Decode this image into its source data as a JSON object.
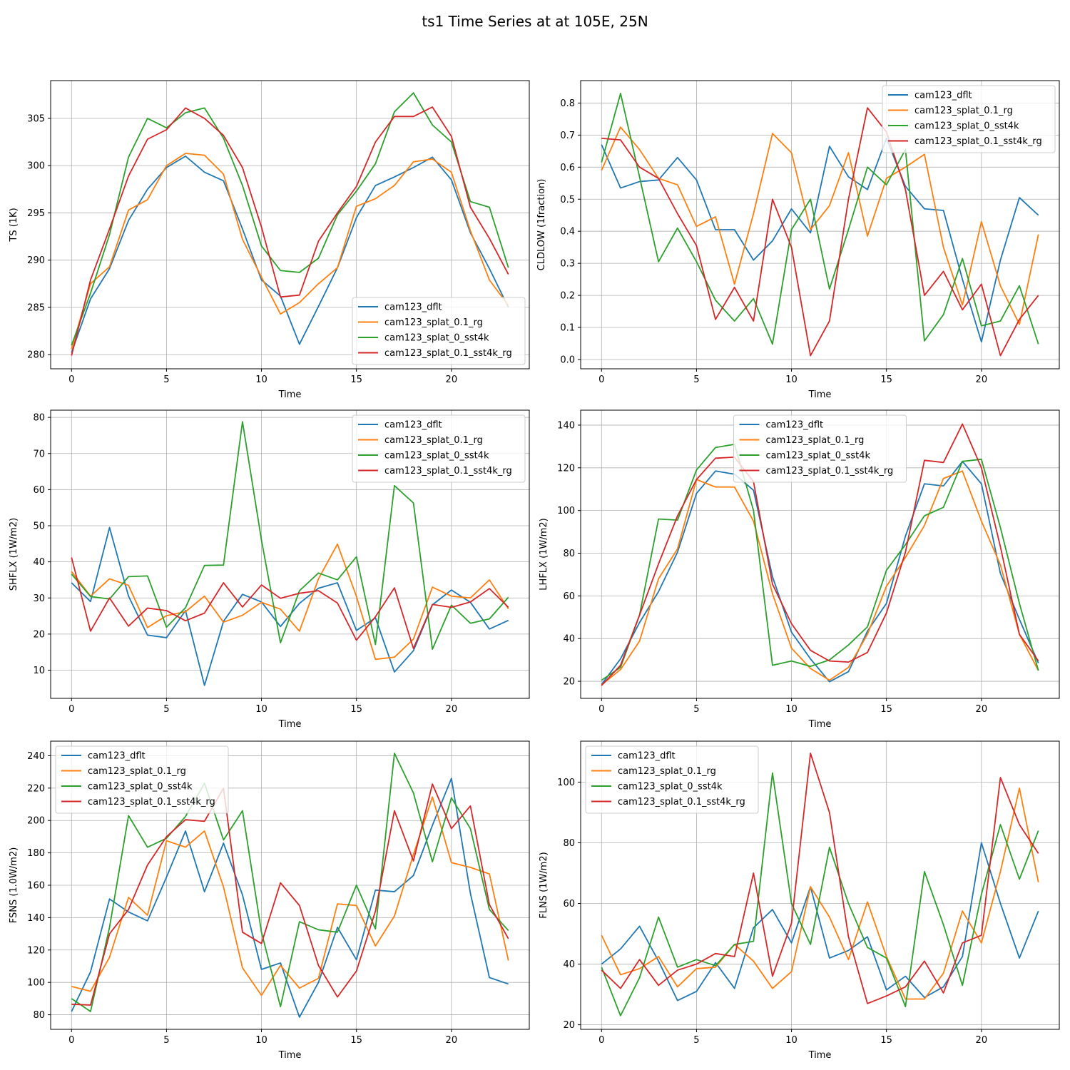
{
  "title": "ts1 Time Series at at 105E, 25N",
  "colors": {
    "cam123_dflt": "#1f77b4",
    "cam123_splat_0.1_rg": "#ff7f0e",
    "cam123_splat_0_sst4k": "#2ca02c",
    "cam123_splat_0.1_sst4k_rg": "#d62728"
  },
  "chart_data": [
    {
      "type": "line",
      "ylabel": "TS (1K)",
      "xlabel": "Time",
      "x": [
        0,
        1,
        2,
        3,
        4,
        5,
        6,
        7,
        8,
        9,
        10,
        11,
        12,
        13,
        14,
        15,
        16,
        17,
        18,
        19,
        20,
        21,
        22,
        23
      ],
      "xlim": [
        -1.1,
        24.1
      ],
      "xticks": [
        0,
        5,
        10,
        15,
        20
      ],
      "ylim": [
        278.5,
        309
      ],
      "yticks": [
        280,
        285,
        290,
        295,
        300,
        305
      ],
      "legend_loc": "lower right",
      "series": [
        {
          "name": "cam123_dflt",
          "values": [
            280.2,
            285.9,
            289.1,
            294.2,
            297.5,
            299.8,
            301.0,
            299.3,
            298.4,
            293.3,
            287.9,
            286.2,
            281.1,
            285.1,
            289.2,
            294.5,
            297.9,
            298.8,
            299.8,
            300.9,
            298.5,
            292.9,
            289.1,
            285.0
          ]
        },
        {
          "name": "cam123_splat_0.1_rg",
          "values": [
            280.6,
            287.5,
            289.3,
            295.3,
            296.4,
            300.0,
            301.3,
            301.1,
            299.1,
            292.2,
            288.2,
            284.3,
            285.5,
            287.5,
            289.2,
            295.7,
            296.5,
            297.9,
            300.4,
            300.7,
            299.3,
            293.1,
            287.9,
            285.2
          ]
        },
        {
          "name": "cam123_splat_0_sst4k",
          "values": [
            281.0,
            286.5,
            292.7,
            300.9,
            305.0,
            304.0,
            305.6,
            306.1,
            302.9,
            297.9,
            291.5,
            288.9,
            288.7,
            290.2,
            294.8,
            297.3,
            300.2,
            305.7,
            307.7,
            304.3,
            302.5,
            296.2,
            295.6,
            289.2
          ]
        },
        {
          "name": "cam123_splat_0.1_sst4k_rg",
          "values": [
            279.9,
            287.9,
            293.3,
            298.9,
            302.8,
            303.8,
            306.1,
            305.0,
            303.2,
            299.8,
            293.5,
            286.1,
            286.3,
            292.0,
            295.0,
            297.8,
            302.5,
            305.2,
            305.2,
            306.2,
            303.1,
            295.6,
            292.3,
            288.5
          ]
        }
      ]
    },
    {
      "type": "line",
      "ylabel": "CLDLOW (1fraction)",
      "xlabel": "Time",
      "x": [
        0,
        1,
        2,
        3,
        4,
        5,
        6,
        7,
        8,
        9,
        10,
        11,
        12,
        13,
        14,
        15,
        16,
        17,
        18,
        19,
        20,
        21,
        22,
        23
      ],
      "xlim": [
        -1.1,
        24.1
      ],
      "xticks": [
        0,
        5,
        10,
        15,
        20
      ],
      "ylim": [
        -0.029,
        0.87
      ],
      "yticks": [
        0.0,
        0.1,
        0.2,
        0.3,
        0.4,
        0.5,
        0.6,
        0.7,
        0.8
      ],
      "legend_loc": "upper right",
      "series": [
        {
          "name": "cam123_dflt",
          "values": [
            0.67,
            0.535,
            0.555,
            0.56,
            0.63,
            0.56,
            0.405,
            0.405,
            0.31,
            0.37,
            0.47,
            0.395,
            0.665,
            0.57,
            0.53,
            0.69,
            0.54,
            0.47,
            0.465,
            0.25,
            0.055,
            0.31,
            0.505,
            0.45
          ]
        },
        {
          "name": "cam123_splat_0.1_rg",
          "values": [
            0.59,
            0.725,
            0.655,
            0.565,
            0.545,
            0.415,
            0.445,
            0.235,
            0.455,
            0.705,
            0.645,
            0.405,
            0.48,
            0.645,
            0.385,
            0.565,
            0.6,
            0.64,
            0.35,
            0.17,
            0.43,
            0.23,
            0.11,
            0.39
          ]
        },
        {
          "name": "cam123_splat_0_sst4k",
          "values": [
            0.615,
            0.83,
            0.57,
            0.305,
            0.41,
            0.305,
            0.185,
            0.12,
            0.19,
            0.048,
            0.405,
            0.5,
            0.22,
            0.405,
            0.6,
            0.545,
            0.655,
            0.058,
            0.14,
            0.315,
            0.105,
            0.12,
            0.23,
            0.048
          ]
        },
        {
          "name": "cam123_splat_0.1_sst4k_rg",
          "values": [
            0.69,
            0.685,
            0.6,
            0.565,
            0.455,
            0.355,
            0.125,
            0.225,
            0.12,
            0.5,
            0.35,
            0.012,
            0.12,
            0.5,
            0.785,
            0.71,
            0.53,
            0.2,
            0.275,
            0.155,
            0.235,
            0.012,
            0.125,
            0.2
          ]
        }
      ]
    },
    {
      "type": "line",
      "ylabel": "SHFLX (1W/m2)",
      "xlabel": "Time",
      "x": [
        0,
        1,
        2,
        3,
        4,
        5,
        6,
        7,
        8,
        9,
        10,
        11,
        12,
        13,
        14,
        15,
        16,
        17,
        18,
        19,
        20,
        21,
        22,
        23
      ],
      "xlim": [
        -1.1,
        24.1
      ],
      "xticks": [
        0,
        5,
        10,
        15,
        20
      ],
      "ylim": [
        2.2,
        82
      ],
      "yticks": [
        10,
        20,
        30,
        40,
        50,
        60,
        70,
        80
      ],
      "legend_loc": "upper right",
      "series": [
        {
          "name": "cam123_dflt",
          "values": [
            34.2,
            29.0,
            49.5,
            30.5,
            19.7,
            19.0,
            26.5,
            5.8,
            23.5,
            31.0,
            28.9,
            22.1,
            28.5,
            32.7,
            34.2,
            21.0,
            24.5,
            9.5,
            15.4,
            28.1,
            32.2,
            28.8,
            21.4,
            23.8
          ]
        },
        {
          "name": "cam123_splat_0.1_rg",
          "values": [
            37.3,
            30.5,
            35.3,
            33.5,
            21.8,
            25.1,
            26.2,
            30.5,
            23.3,
            25.2,
            28.8,
            26.9,
            20.8,
            35.3,
            44.9,
            30.4,
            13.0,
            13.6,
            18.6,
            33.0,
            30.5,
            30.0,
            35.0,
            27.0
          ]
        },
        {
          "name": "cam123_splat_0_sst4k",
          "values": [
            36.6,
            30.4,
            29.7,
            35.9,
            36.1,
            21.9,
            27.3,
            39.0,
            39.1,
            78.8,
            46.0,
            17.6,
            32.0,
            36.9,
            35.0,
            41.4,
            17.1,
            61.1,
            56.3,
            15.8,
            28.0,
            23.0,
            24.2,
            30.2
          ]
        },
        {
          "name": "cam123_splat_0.1_sst4k_rg",
          "values": [
            41.2,
            20.8,
            30.0,
            22.2,
            27.2,
            26.5,
            23.7,
            25.8,
            34.2,
            27.5,
            33.6,
            29.9,
            31.3,
            32.0,
            28.6,
            18.3,
            24.8,
            32.8,
            16.0,
            28.2,
            27.4,
            28.9,
            32.6,
            27.4
          ]
        }
      ]
    },
    {
      "type": "line",
      "ylabel": "LHFLX (1W/m2)",
      "xlabel": "Time",
      "x": [
        0,
        1,
        2,
        3,
        4,
        5,
        6,
        7,
        8,
        9,
        10,
        11,
        12,
        13,
        14,
        15,
        16,
        17,
        18,
        19,
        20,
        21,
        22,
        23
      ],
      "xlim": [
        -1.1,
        24.1
      ],
      "xticks": [
        0,
        5,
        10,
        15,
        20
      ],
      "ylim": [
        12,
        147
      ],
      "yticks": [
        20,
        40,
        60,
        80,
        100,
        120,
        140
      ],
      "legend_loc": "upper center",
      "series": [
        {
          "name": "cam123_dflt",
          "values": [
            18.5,
            30.5,
            47.5,
            62.0,
            80.5,
            108.0,
            118.5,
            117.0,
            109.5,
            69.0,
            43.0,
            30.5,
            19.8,
            24.5,
            43.5,
            56.5,
            88.0,
            112.5,
            111.5,
            123.0,
            112.5,
            70.5,
            49.0,
            28.5
          ]
        },
        {
          "name": "cam123_splat_0.1_rg",
          "values": [
            18.3,
            25.5,
            38.8,
            68.0,
            82.0,
            114.5,
            111.0,
            111.0,
            95.0,
            61.0,
            35.5,
            26.0,
            20.5,
            26.5,
            42.0,
            64.5,
            78.0,
            93.0,
            115.0,
            118.5,
            95.0,
            74.5,
            42.0,
            25.0
          ]
        },
        {
          "name": "cam123_splat_0_sst4k",
          "values": [
            20.5,
            26.5,
            51.0,
            96.0,
            95.5,
            119.0,
            129.5,
            131.0,
            100.0,
            27.5,
            29.5,
            27.0,
            30.0,
            37.0,
            45.5,
            72.0,
            84.0,
            97.5,
            101.5,
            123.0,
            124.0,
            92.0,
            56.5,
            25.0
          ]
        },
        {
          "name": "cam123_splat_0.1_sst4k_rg",
          "values": [
            18.0,
            27.5,
            51.0,
            75.0,
            97.5,
            114.5,
            124.5,
            125.0,
            113.5,
            65.5,
            47.0,
            34.5,
            29.5,
            29.0,
            33.5,
            52.0,
            80.5,
            123.5,
            122.5,
            140.5,
            120.0,
            83.0,
            42.0,
            29.5
          ]
        }
      ]
    },
    {
      "type": "line",
      "ylabel": "FSNS (1.0W/m2)",
      "xlabel": "Time",
      "x": [
        0,
        1,
        2,
        3,
        4,
        5,
        6,
        7,
        8,
        9,
        10,
        11,
        12,
        13,
        14,
        15,
        16,
        17,
        18,
        19,
        20,
        21,
        22,
        23
      ],
      "xlim": [
        -1.1,
        24.1
      ],
      "xticks": [
        0,
        5,
        10,
        15,
        20
      ],
      "ylim": [
        71,
        249
      ],
      "yticks": [
        80,
        100,
        120,
        140,
        160,
        180,
        200,
        220,
        240
      ],
      "legend_loc": "upper left",
      "series": [
        {
          "name": "cam123_dflt",
          "values": [
            82.0,
            106.5,
            151.5,
            143.5,
            138.0,
            165.0,
            193.5,
            156.0,
            186.0,
            154.0,
            108.0,
            112.0,
            78.5,
            100.0,
            134.0,
            114.0,
            157.0,
            156.0,
            166.0,
            197.0,
            226.0,
            155.0,
            103.0,
            99.0
          ]
        },
        {
          "name": "cam123_splat_0.1_rg",
          "values": [
            97.5,
            94.5,
            115.5,
            152.5,
            141.5,
            187.5,
            183.5,
            193.5,
            159.0,
            109.0,
            92.0,
            110.5,
            96.5,
            102.5,
            148.5,
            147.5,
            122.5,
            141.0,
            179.0,
            214.5,
            174.0,
            171.0,
            167.0,
            113.5
          ]
        },
        {
          "name": "cam123_splat_0_sst4k",
          "values": [
            90.0,
            82.0,
            134.0,
            203.0,
            183.5,
            189.0,
            202.5,
            223.0,
            188.0,
            206.0,
            131.0,
            85.0,
            137.5,
            132.5,
            131.0,
            160.0,
            133.0,
            241.5,
            217.0,
            174.5,
            214.0,
            195.0,
            145.0,
            132.0
          ]
        },
        {
          "name": "cam123_splat_0.1_sst4k_rg",
          "values": [
            86.5,
            86.0,
            130.0,
            145.0,
            172.5,
            190.0,
            200.5,
            199.5,
            220.0,
            131.0,
            124.0,
            161.5,
            147.5,
            110.5,
            91.0,
            107.0,
            144.0,
            206.0,
            175.0,
            222.5,
            195.0,
            209.0,
            148.0,
            127.0
          ]
        }
      ]
    },
    {
      "type": "line",
      "ylabel": "FLNS (1W/m2)",
      "xlabel": "Time",
      "x": [
        0,
        1,
        2,
        3,
        4,
        5,
        6,
        7,
        8,
        9,
        10,
        11,
        12,
        13,
        14,
        15,
        16,
        17,
        18,
        19,
        20,
        21,
        22,
        23
      ],
      "xlim": [
        -1.1,
        24.1
      ],
      "xticks": [
        0,
        5,
        10,
        15,
        20
      ],
      "ylim": [
        18.5,
        113.5
      ],
      "yticks": [
        20,
        40,
        60,
        80,
        100
      ],
      "legend_loc": "upper left",
      "series": [
        {
          "name": "cam123_dflt",
          "values": [
            40.0,
            45.0,
            52.5,
            41.0,
            28.0,
            31.0,
            40.5,
            32.0,
            52.0,
            58.0,
            47.0,
            65.5,
            42.0,
            44.5,
            49.0,
            31.5,
            36.0,
            29.0,
            32.5,
            42.5,
            80.0,
            60.0,
            42.0,
            57.5
          ]
        },
        {
          "name": "cam123_splat_0.1_rg",
          "values": [
            49.5,
            36.5,
            38.5,
            42.5,
            32.5,
            38.5,
            39.0,
            46.5,
            41.0,
            32.0,
            37.5,
            65.5,
            55.5,
            41.5,
            60.5,
            42.5,
            28.5,
            28.5,
            37.0,
            57.5,
            47.0,
            70.5,
            98.0,
            67.0
          ]
        },
        {
          "name": "cam123_splat_0_sst4k",
          "values": [
            39.0,
            23.0,
            35.5,
            55.5,
            39.0,
            41.5,
            39.5,
            46.5,
            47.5,
            103.0,
            60.0,
            46.5,
            78.5,
            60.0,
            45.5,
            42.0,
            26.0,
            70.5,
            53.0,
            33.0,
            63.0,
            86.0,
            68.0,
            84.0
          ]
        },
        {
          "name": "cam123_splat_0.1_sst4k_rg",
          "values": [
            38.0,
            32.0,
            41.5,
            33.0,
            38.0,
            40.0,
            43.5,
            42.5,
            70.0,
            36.0,
            53.5,
            109.5,
            90.0,
            49.0,
            27.0,
            29.5,
            32.5,
            41.0,
            30.5,
            47.0,
            49.5,
            101.5,
            86.0,
            76.5
          ]
        }
      ]
    }
  ]
}
